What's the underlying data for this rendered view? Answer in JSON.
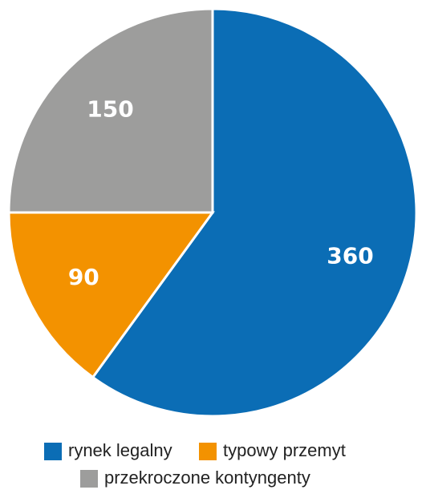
{
  "chart_data": {
    "type": "pie",
    "categories": [
      "rynek legalny",
      "typowy przemyt",
      "przekroczone kontyngenty"
    ],
    "values": [
      360,
      90,
      150
    ],
    "colors": [
      "#0b6db5",
      "#f39200",
      "#9d9d9c"
    ],
    "start_angle": 0,
    "direction": "clockwise",
    "legend": "bottom"
  }
}
